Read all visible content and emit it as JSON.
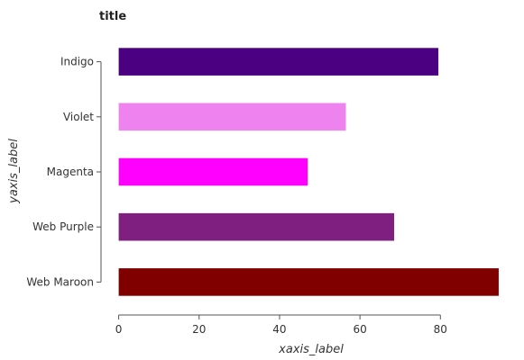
{
  "chart_data": {
    "type": "bar",
    "orientation": "horizontal",
    "title": "title",
    "xlabel": "xaxis_label",
    "ylabel": "yaxis_label",
    "categories": [
      "Web Maroon",
      "Web Purple",
      "Magenta",
      "Violet",
      "Indigo"
    ],
    "values": [
      94.5,
      68.5,
      47,
      56.5,
      79.5
    ],
    "colors": [
      "#800000",
      "#7f1f7f",
      "#ff00ff",
      "#ee82ee",
      "#4b0082"
    ],
    "xlim": [
      -3.5,
      99
    ],
    "xticks": [
      0,
      20,
      40,
      60,
      80
    ],
    "grid": false,
    "legend": "none"
  }
}
